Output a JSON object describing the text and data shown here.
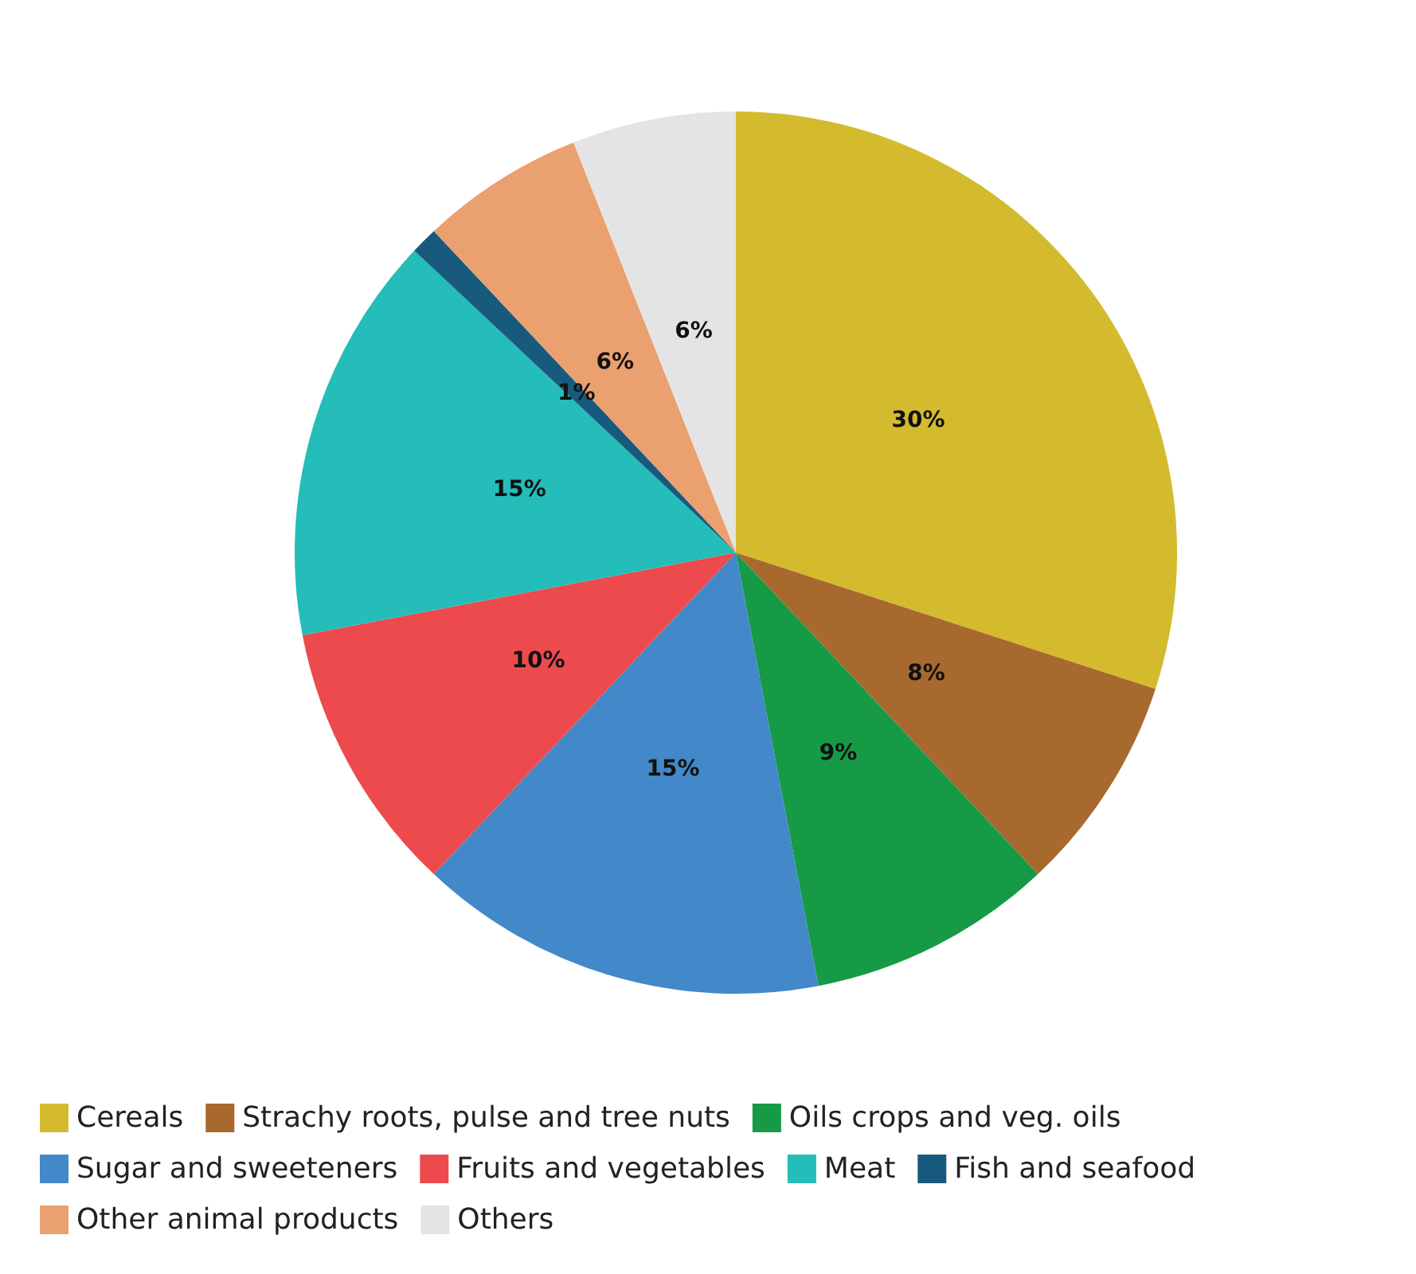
{
  "chart_data": {
    "type": "pie",
    "categories": [
      "Cereals",
      "Strachy roots, pulse and tree nuts",
      "Oils crops and veg. oils",
      "Sugar and sweeteners",
      "Fruits and vegetables",
      "Meat",
      "Fish and seafood",
      "Other animal products",
      "Others"
    ],
    "values": [
      30,
      8,
      9,
      15,
      10,
      15,
      1,
      6,
      6
    ],
    "colors": [
      "#d4bb2e",
      "#a8692e",
      "#169a46",
      "#4388c8",
      "#ec4a4c",
      "#24bdb9",
      "#185a7e",
      "#eba06f",
      "#e4e4e4"
    ],
    "value_labels": [
      "30%",
      "8%",
      "9%",
      "15%",
      "10%",
      "15%",
      "1%",
      "6%",
      "6%"
    ],
    "legend": "bottom"
  }
}
